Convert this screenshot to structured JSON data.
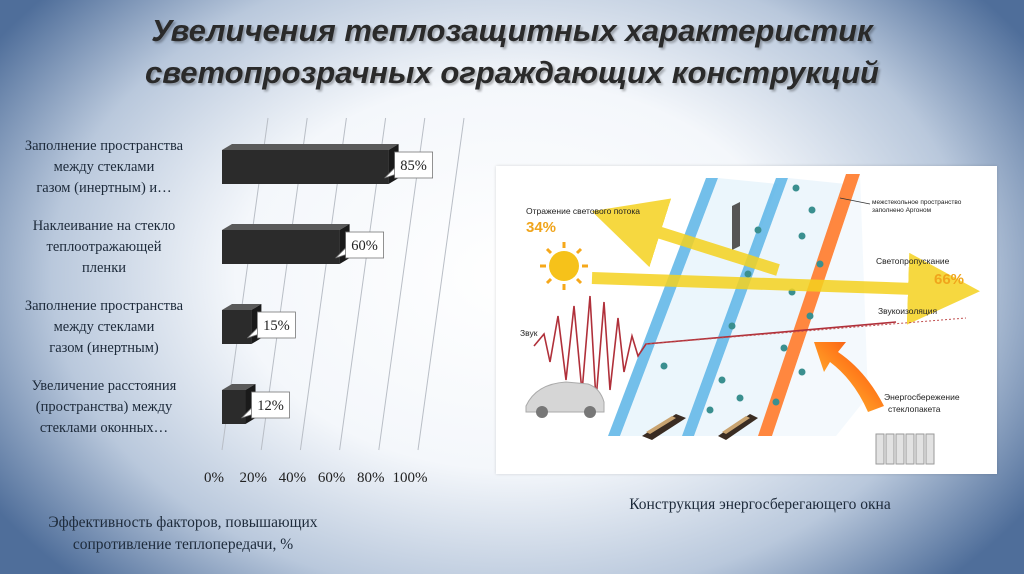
{
  "slide": {
    "title_line1": "Увеличения теплозащитных характеристик",
    "title_line2": "светопрозрачных ограждающих конструкций",
    "caption_left_line1": "Эффективность факторов, повышающих",
    "caption_left_line2": "сопротивление теплопередачи, %",
    "caption_right": "Конструкция энергосберегающего окна"
  },
  "chart_data": {
    "type": "bar",
    "orientation": "horizontal",
    "style": "3d",
    "categories": [
      [
        "Заполнение пространства",
        "между стеклами",
        "газом (инертным) и…"
      ],
      [
        "Наклеивание на стекло",
        "теплоотражающей",
        "пленки"
      ],
      [
        "Заполнение пространства",
        "между стеклами",
        "газом (инертным)"
      ],
      [
        "Увеличение расстояния",
        "(пространства) между",
        "стеклами оконных…"
      ]
    ],
    "values": [
      85,
      60,
      15,
      12
    ],
    "data_labels": [
      "85%",
      "60%",
      "15%",
      "12%"
    ],
    "xlim": [
      0,
      100
    ],
    "x_ticks": [
      "0%",
      "20%",
      "40%",
      "60%",
      "80%",
      "100%"
    ],
    "grid": true,
    "bar_color": "#2b2b2b"
  },
  "diagram": {
    "label_reflection": "Отражение светового потока",
    "value_reflection": "34%",
    "label_gap_line1": "межстекольное пространство",
    "label_gap_line2": "заполнено Аргоном",
    "label_transmission": "Светопропускание",
    "value_transmission": "66%",
    "label_sound": "Звук",
    "label_soundproof": "Звукоизоляция",
    "label_energy_line1": "Энергосбережение",
    "label_energy_line2": "стеклопакета",
    "colors": {
      "glass": "#5ab4e6",
      "coated_glass": "#ff7a2a",
      "arrow": "#f5d21f",
      "value_text": "#f0a51c",
      "sound_wave": "#b0303a"
    }
  }
}
